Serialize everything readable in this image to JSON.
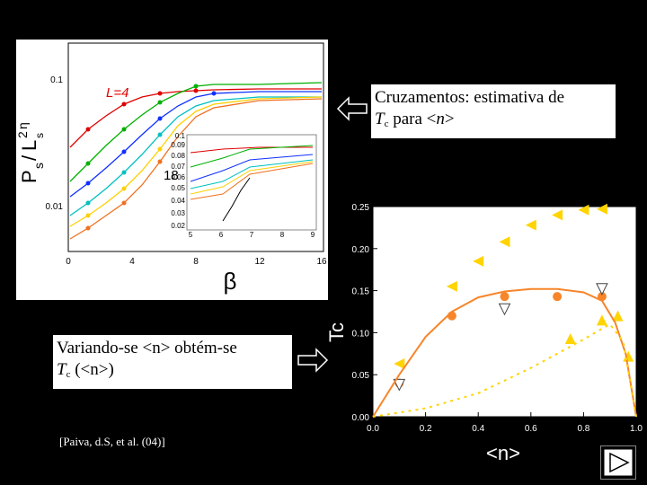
{
  "top_plot": {
    "x_axis_label": "β",
    "x_ticks": [
      "0",
      "4",
      "8",
      "12",
      "16"
    ],
    "y_ticks": [
      "0.1",
      "0.01"
    ],
    "curve_labels": [
      "L=4",
      "18"
    ],
    "y_axis_label_parts": [
      "P",
      "s",
      "/",
      "L",
      "2",
      "η",
      "s"
    ],
    "inset_y_ticks": [
      "0.1",
      "0.09",
      "0.08",
      "0.07",
      "0.06",
      "0.05",
      "0.04",
      "0.03",
      "0.02"
    ],
    "inset_x_ticks": [
      "5",
      "6",
      "7",
      "8",
      "9"
    ]
  },
  "callout_top": {
    "line1": "Cruzamentos: estimativa de",
    "tc_symbol": "T",
    "tc_subscript": "c",
    "line2_rest": " para <",
    "n_symbol": "n",
    "line2_end": ">"
  },
  "callout_bottom": {
    "line1": "Variando-se <n> obtém-se",
    "tc_symbol": "T",
    "tc_subscript": "c",
    "line2_rest": " (<n>)"
  },
  "citation": "[Paiva, d.S, et al. (04)]",
  "chart_data": [
    {
      "type": "scatter",
      "title": "",
      "xlabel": "<n>",
      "ylabel": "Tc",
      "xlim": [
        0.0,
        1.0
      ],
      "ylim": [
        0.0,
        0.25
      ],
      "x_ticks": [
        "0.0",
        "0.2",
        "0.4",
        "0.6",
        "0.8",
        "1.0"
      ],
      "y_ticks": [
        "0.00",
        "0.05",
        "0.10",
        "0.15",
        "0.20",
        "0.25"
      ],
      "series": [
        {
          "name": "left-triangles",
          "color": "#ffd400",
          "marker": "triangle-left",
          "x": [
            0.1,
            0.3,
            0.4,
            0.5,
            0.6,
            0.7,
            0.8,
            0.87
          ],
          "y": [
            0.063,
            0.155,
            0.185,
            0.208,
            0.228,
            0.24,
            0.246,
            0.247
          ]
        },
        {
          "name": "circles",
          "color": "#f7852a",
          "marker": "circle",
          "x": [
            0.1,
            0.3,
            0.5,
            0.7,
            0.87
          ],
          "y": [
            0.04,
            0.12,
            0.143,
            0.143,
            0.143
          ]
        },
        {
          "name": "down-triangles",
          "color": "#ffffff",
          "marker": "triangle-down",
          "x": [
            0.1,
            0.5,
            0.87
          ],
          "y": [
            0.038,
            0.128,
            0.152
          ]
        },
        {
          "name": "up-triangles",
          "color": "#ffd400",
          "marker": "triangle-up",
          "x": [
            0.75,
            0.87,
            0.93,
            0.97
          ],
          "y": [
            0.093,
            0.115,
            0.12,
            0.072
          ]
        },
        {
          "name": "fit-solid",
          "color": "#f7852a",
          "marker": "line",
          "x": [
            0.0,
            0.1,
            0.2,
            0.3,
            0.4,
            0.5,
            0.6,
            0.7,
            0.8,
            0.87,
            0.92,
            0.96,
            1.0
          ],
          "y": [
            0.0,
            0.05,
            0.095,
            0.125,
            0.142,
            0.149,
            0.152,
            0.152,
            0.148,
            0.138,
            0.112,
            0.075,
            0.0
          ]
        },
        {
          "name": "fit-dotted",
          "color": "#ffd400",
          "marker": "dotted-line",
          "x": [
            0.0,
            0.2,
            0.4,
            0.6,
            0.8,
            0.9,
            0.95,
            1.0
          ],
          "y": [
            0.0,
            0.01,
            0.028,
            0.058,
            0.092,
            0.11,
            0.09,
            0.0
          ]
        }
      ]
    }
  ]
}
